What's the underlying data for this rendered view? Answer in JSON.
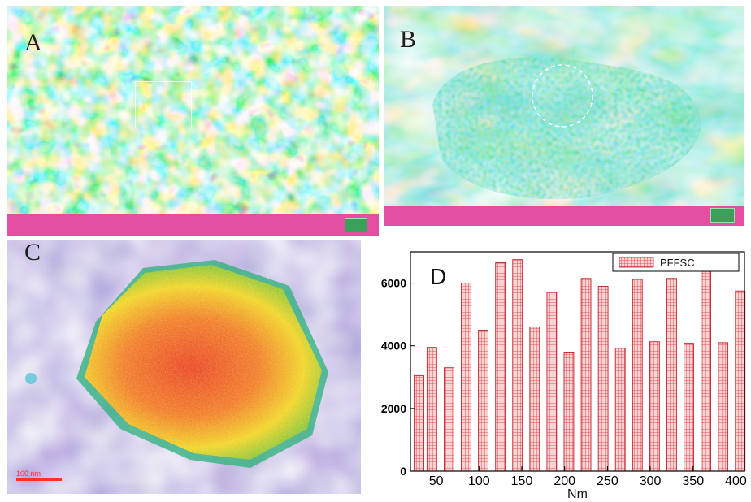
{
  "panels": {
    "a": {
      "letter": "A"
    },
    "b": {
      "letter": "B"
    },
    "c": {
      "letter": "C",
      "scale_bar": "100 nm"
    },
    "d": {
      "letter": "D"
    }
  },
  "colors": {
    "bar_fill": "#f6c8c8",
    "bar_grid": "#e0303a",
    "info_bar": "#e44ea0",
    "background_c": "#6b52a8"
  },
  "chart_data": {
    "type": "bar",
    "title": "",
    "panel_label": "D",
    "xlabel": "Nm",
    "ylabel": "",
    "x": [
      30,
      45,
      65,
      85,
      105,
      125,
      145,
      165,
      185,
      205,
      225,
      245,
      265,
      285,
      305,
      325,
      345,
      365,
      385,
      405
    ],
    "series": [
      {
        "name": "PFFSC",
        "values": [
          3050,
          3950,
          3300,
          6000,
          4500,
          6650,
          6750,
          4600,
          5700,
          3800,
          6150,
          5900,
          3920,
          6120,
          4130,
          6150,
          4080,
          6550,
          4100,
          5750
        ]
      }
    ],
    "xlim": [
      20,
      410
    ],
    "ylim": [
      0,
      7000
    ],
    "xticks": [
      50,
      100,
      150,
      200,
      250,
      300,
      350,
      400
    ],
    "yticks": [
      0,
      2000,
      4000,
      6000
    ],
    "legend_position": "top-right",
    "grid": false
  }
}
